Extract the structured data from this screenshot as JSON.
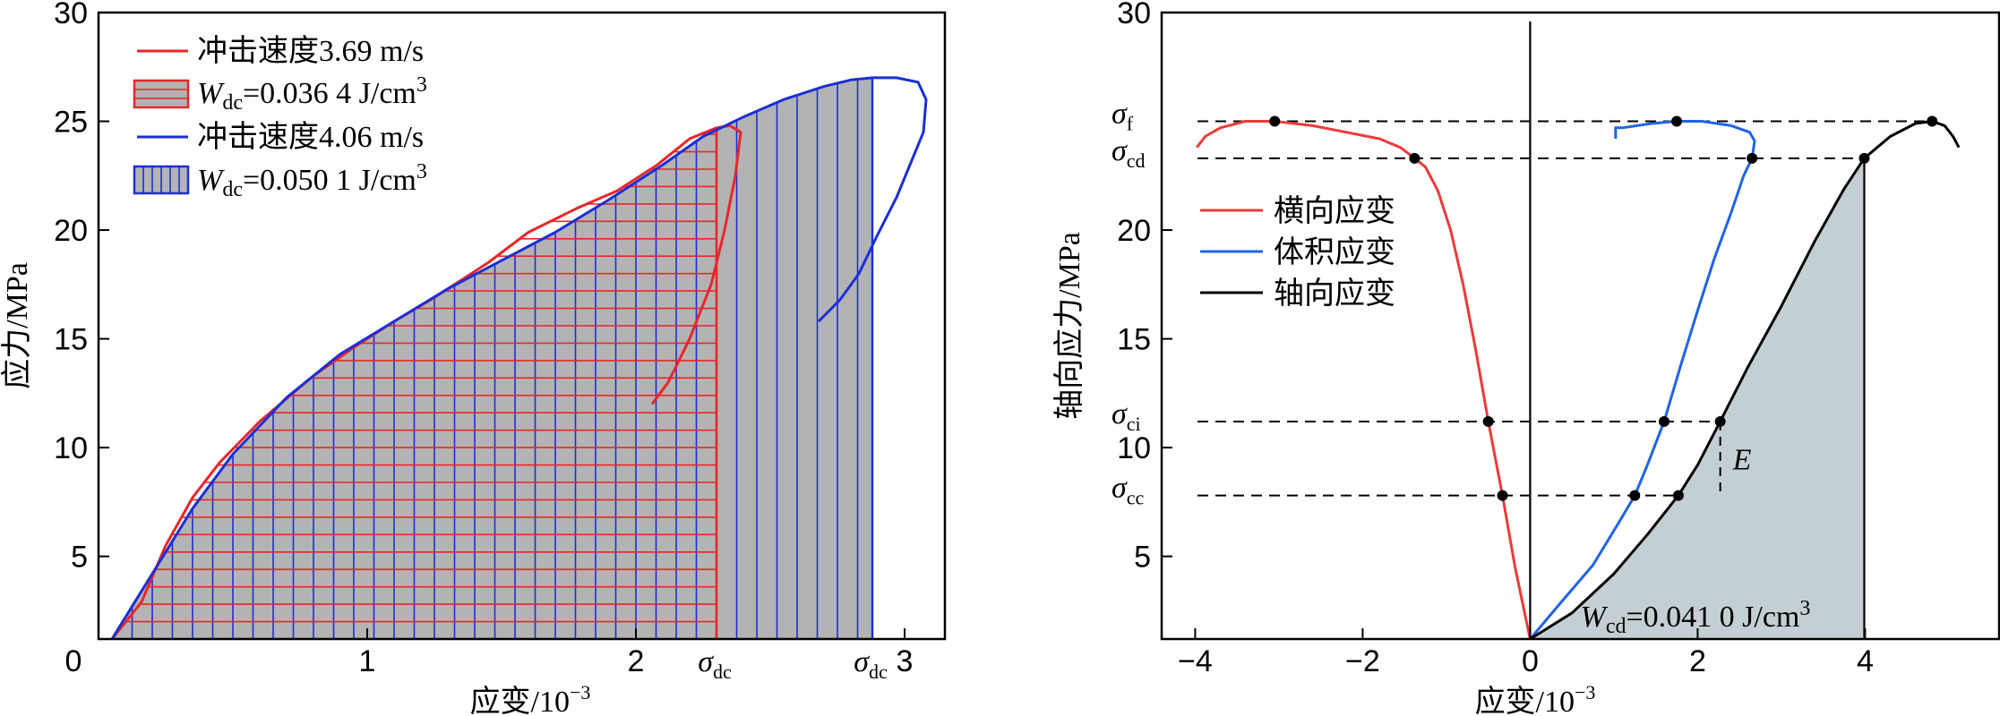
{
  "chart_data": [
    {
      "type": "area",
      "title": "",
      "xlabel": "应变/10",
      "xlabel_sup": "−3",
      "ylabel": "应力/MPa",
      "xlim": [
        0,
        3.15
      ],
      "ylim": [
        1.2,
        30
      ],
      "x_ticks": [
        "0",
        "1",
        "2",
        "3"
      ],
      "x_tick_values": [
        0,
        1,
        2,
        3
      ],
      "y_ticks": [
        "5",
        "10",
        "15",
        "20",
        "25",
        "30"
      ],
      "y_tick_values": [
        5,
        10,
        15,
        20,
        25,
        30
      ],
      "grid": false,
      "legend_position": "top-left",
      "sigma_dc_label": "σ",
      "sigma_dc_sub": "dc",
      "sigma_dc_x": [
        2.3,
        2.88
      ],
      "series": [
        {
          "name": "冲击速度3.69 m/s",
          "color": "#e8262a",
          "energy_label_main": "W",
          "energy_label_sub": "dc",
          "energy_label_value": "=0.036 4 J/cm",
          "energy_label_sup": "3",
          "x": [
            0.05,
            0.16,
            0.25,
            0.35,
            0.45,
            0.6,
            0.8,
            0.95,
            1.1,
            1.25,
            1.45,
            1.6,
            1.78,
            1.93,
            2.08,
            2.2,
            2.3,
            2.35,
            2.39,
            2.37,
            2.33,
            2.28,
            2.2,
            2.12,
            2.06
          ],
          "y": [
            1.2,
            2.9,
            5.5,
            7.7,
            9.3,
            11.2,
            13.3,
            14.6,
            15.8,
            16.9,
            18.5,
            19.9,
            21.0,
            21.8,
            23.0,
            24.2,
            24.7,
            24.8,
            24.5,
            22.5,
            20.0,
            17.5,
            15.0,
            13.0,
            12.0
          ],
          "shade_until_x": 2.3
        },
        {
          "name": "冲击速度4.06 m/s",
          "color": "#1a2fd6",
          "energy_label_main": "W",
          "energy_label_sub": "dc",
          "energy_label_value": "=0.050 1 J/cm",
          "energy_label_sup": "3",
          "x": [
            0.05,
            0.2,
            0.35,
            0.5,
            0.7,
            0.9,
            1.1,
            1.3,
            1.5,
            1.7,
            1.9,
            2.1,
            2.25,
            2.4,
            2.55,
            2.7,
            2.8,
            2.88,
            2.97,
            3.05,
            3.08,
            3.07,
            3.02,
            2.97,
            2.9,
            2.83,
            2.76,
            2.72,
            2.68
          ],
          "y": [
            1.2,
            4.2,
            7.2,
            9.7,
            12.3,
            14.3,
            15.8,
            17.3,
            18.6,
            19.9,
            21.4,
            23.0,
            24.3,
            25.2,
            26.0,
            26.6,
            26.9,
            27.0,
            27.0,
            26.8,
            26.0,
            24.5,
            23.0,
            21.5,
            19.8,
            18.0,
            16.8,
            16.3,
            15.8
          ],
          "shade_until_x": 2.88
        }
      ]
    },
    {
      "type": "line",
      "title": "",
      "xlabel": "应变/10",
      "xlabel_sup": "−3",
      "ylabel": "轴向应力/MPa",
      "xlim": [
        -4.4,
        5.6
      ],
      "ylim": [
        1.2,
        30
      ],
      "x_ticks": [
        "−4",
        "−2",
        "0",
        "2",
        "4"
      ],
      "x_tick_values": [
        -4,
        -2,
        0,
        2,
        4
      ],
      "y_ticks": [
        "5",
        "10",
        "15",
        "20",
        "30"
      ],
      "y_tick_values": [
        5,
        10,
        15,
        20,
        30
      ],
      "grid": false,
      "legend_position": "middle-left",
      "stress_levels": [
        {
          "label": "σ",
          "sub": "f",
          "y": 25
        },
        {
          "label": "σ",
          "sub": "cd",
          "y": 23.3
        },
        {
          "label": "σ",
          "sub": "ci",
          "y": 11.2
        },
        {
          "label": "σ",
          "sub": "cc",
          "y": 7.8
        }
      ],
      "modulus_label": "E",
      "energy_label_main": "W",
      "energy_label_sub": "cd",
      "energy_label_value": "=0.041 0  J/cm",
      "energy_label_sup": "3",
      "series": [
        {
          "name": "横向应变",
          "color": "#ee3a3a",
          "x": [
            0.0,
            -0.18,
            -0.33,
            -0.5,
            -0.65,
            -0.8,
            -0.95,
            -1.1,
            -1.25,
            -1.38,
            -1.55,
            -1.8,
            -2.2,
            -2.6,
            -3.05,
            -3.4,
            -3.7,
            -3.88,
            -3.98
          ],
          "y": [
            1.2,
            4.5,
            7.8,
            11.2,
            14.5,
            17.5,
            20.0,
            21.8,
            22.9,
            23.3,
            23.8,
            24.2,
            24.5,
            24.8,
            25.0,
            25.0,
            24.7,
            24.3,
            23.8
          ],
          "markers": [
            [
              -3.05,
              25.0
            ],
            [
              -1.38,
              23.3
            ],
            [
              -0.5,
              11.2
            ],
            [
              -0.33,
              7.8
            ]
          ]
        },
        {
          "name": "体积应变",
          "color": "#1f64e6",
          "x": [
            0.0,
            0.35,
            0.75,
            1.05,
            1.25,
            1.4,
            1.6,
            1.8,
            2.0,
            2.2,
            2.4,
            2.55,
            2.65,
            2.68,
            2.62,
            2.4,
            2.05,
            1.75,
            1.45,
            1.1,
            1.02,
            1.02
          ],
          "y": [
            1.2,
            2.8,
            4.6,
            6.5,
            7.8,
            9.2,
            11.2,
            13.8,
            16.3,
            18.7,
            20.8,
            22.5,
            23.3,
            24.1,
            24.5,
            24.8,
            25.0,
            25.0,
            24.9,
            24.7,
            24.7,
            24.2
          ],
          "markers": [
            [
              1.75,
              25.0
            ],
            [
              2.65,
              23.3
            ],
            [
              1.6,
              11.2
            ],
            [
              1.25,
              7.8
            ]
          ]
        },
        {
          "name": "轴向应变",
          "color": "#000000",
          "x": [
            0.0,
            0.5,
            1.0,
            1.4,
            1.77,
            2.0,
            2.27,
            2.6,
            3.0,
            3.4,
            3.75,
            3.99,
            4.3,
            4.6,
            4.8,
            4.95,
            5.05,
            5.12
          ],
          "y": [
            1.2,
            2.4,
            4.2,
            6.0,
            7.8,
            9.2,
            11.2,
            13.7,
            16.5,
            19.5,
            21.9,
            23.3,
            24.3,
            24.9,
            25.0,
            24.8,
            24.3,
            23.8
          ],
          "markers": [
            [
              4.8,
              25.0
            ],
            [
              3.99,
              23.3
            ],
            [
              2.27,
              11.2
            ],
            [
              1.77,
              7.8
            ]
          ],
          "shade_until_x": 3.99
        }
      ]
    }
  ]
}
